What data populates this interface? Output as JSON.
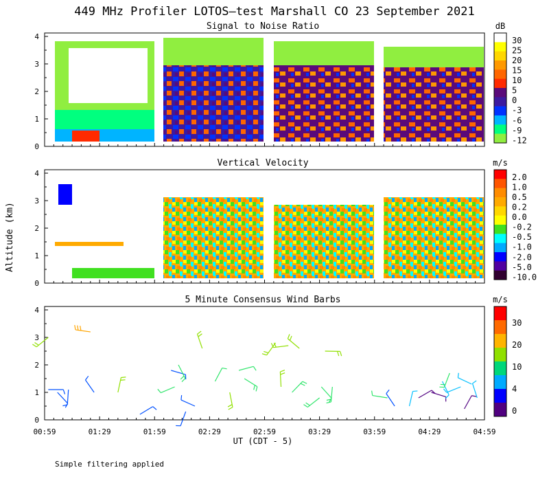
{
  "title": "449 MHz Profiler LOTOS—test Marshall CO 23 September 2021",
  "ylabel": "Altitude (km)",
  "xlabel": "UT  (CDT - 5)",
  "footnote": "Simple filtering applied",
  "x_ticks": [
    "00:59",
    "01:29",
    "01:59",
    "02:29",
    "02:59",
    "03:29",
    "03:59",
    "04:29",
    "04:59"
  ],
  "y_ticks": [
    "0",
    "1",
    "2",
    "3",
    "4"
  ],
  "chart_data": [
    {
      "type": "heatmap",
      "title": "Signal to Noise Ratio",
      "ylabel": "Altitude (km)",
      "xlabel": "UT  (CDT - 5)",
      "ylim": [
        0,
        4
      ],
      "xlim_minutes": [
        59,
        299
      ],
      "colorbar": {
        "unit": "dB",
        "labels": [
          "30",
          "25",
          "20",
          "15",
          "10",
          "5",
          "0",
          "-3",
          "-6",
          "-9",
          "-12"
        ],
        "colors": [
          "#ffffff",
          "#ffff00",
          "#ffd700",
          "#ff9900",
          "#ff6600",
          "#ff2a00",
          "#5a0a7a",
          "#3c1aa0",
          "#0032ff",
          "#00b4ff",
          "#00ff7f",
          "#90ee40"
        ]
      },
      "data_segments_minutes": [
        [
          59,
          118
        ],
        [
          122,
          178
        ],
        [
          181,
          238
        ],
        [
          241,
          297
        ]
      ]
    },
    {
      "type": "heatmap",
      "title": "Vertical Velocity",
      "ylabel": "Altitude (km)",
      "xlabel": "UT  (CDT - 5)",
      "ylim": [
        0,
        4
      ],
      "xlim_minutes": [
        59,
        299
      ],
      "colorbar": {
        "unit": "m/s",
        "labels": [
          "2.0",
          "1.0",
          "0.5",
          "0.2",
          "0.0",
          "-0.2",
          "-0.5",
          "-1.0",
          "-2.0",
          "-5.0",
          "-10.0"
        ],
        "colors": [
          "#ff0000",
          "#ff5500",
          "#ff8c00",
          "#ffaa00",
          "#ffd700",
          "#ffff00",
          "#40e020",
          "#00ffff",
          "#00aaff",
          "#0000ff",
          "#5000a0",
          "#300030"
        ]
      },
      "data_segments_minutes": [
        [
          59,
          118
        ],
        [
          122,
          178
        ],
        [
          181,
          238
        ],
        [
          241,
          297
        ]
      ]
    },
    {
      "type": "scatter",
      "title": "5 Minute Consensus Wind Barbs",
      "ylabel": "Altitude (km)",
      "xlabel": "UT  (CDT - 5)",
      "ylim": [
        0,
        4
      ],
      "xlim_minutes": [
        59,
        299
      ],
      "colorbar": {
        "unit": "m/s",
        "labels": [
          "30",
          "20",
          "10",
          "4",
          "0"
        ],
        "colors": [
          "#ff0000",
          "#ff6a00",
          "#ffb400",
          "#90e000",
          "#00d77a",
          "#00aaff",
          "#0000ff",
          "#500080"
        ]
      },
      "barbs": [
        {
          "t": 61,
          "z": 1.1,
          "speed": 3
        },
        {
          "t": 66,
          "z": 1.0,
          "speed": 3
        },
        {
          "t": 72,
          "z": 1.1,
          "speed": 2
        },
        {
          "t": 61,
          "z": 3.0,
          "speed": 11
        },
        {
          "t": 84,
          "z": 3.2,
          "speed": 18
        },
        {
          "t": 86,
          "z": 1.0,
          "speed": 2
        },
        {
          "t": 99,
          "z": 1.0,
          "speed": 10
        },
        {
          "t": 111,
          "z": 0.2,
          "speed": 2
        },
        {
          "t": 128,
          "z": 1.8,
          "speed": 2
        },
        {
          "t": 132,
          "z": 2.0,
          "speed": 8
        },
        {
          "t": 136,
          "z": 0.3,
          "speed": 2
        },
        {
          "t": 130,
          "z": 1.2,
          "speed": 6
        },
        {
          "t": 141,
          "z": 0.5,
          "speed": 3
        },
        {
          "t": 145,
          "z": 2.6,
          "speed": 11
        },
        {
          "t": 152,
          "z": 1.4,
          "speed": 6
        },
        {
          "t": 165,
          "z": 1.8,
          "speed": 7
        },
        {
          "t": 168,
          "z": 1.5,
          "speed": 8
        },
        {
          "t": 160,
          "z": 1.0,
          "speed": 10
        },
        {
          "t": 185,
          "z": 2.8,
          "speed": 12
        },
        {
          "t": 192,
          "z": 2.7,
          "speed": 12
        },
        {
          "t": 198,
          "z": 2.6,
          "speed": 11
        },
        {
          "t": 188,
          "z": 1.2,
          "speed": 10
        },
        {
          "t": 194,
          "z": 1.0,
          "speed": 9
        },
        {
          "t": 212,
          "z": 2.5,
          "speed": 11
        },
        {
          "t": 210,
          "z": 1.2,
          "speed": 7
        },
        {
          "t": 216,
          "z": 1.2,
          "speed": 8
        },
        {
          "t": 209,
          "z": 0.8,
          "speed": 9
        },
        {
          "t": 246,
          "z": 0.8,
          "speed": 6
        },
        {
          "t": 250,
          "z": 0.5,
          "speed": 2
        },
        {
          "t": 258,
          "z": 0.5,
          "speed": 4
        },
        {
          "t": 263,
          "z": 0.8,
          "speed": 1
        },
        {
          "t": 270,
          "z": 1.0,
          "speed": 0
        },
        {
          "t": 276,
          "z": 1.4,
          "speed": 5
        },
        {
          "t": 280,
          "z": 1.7,
          "speed": 8
        },
        {
          "t": 286,
          "z": 1.2,
          "speed": 5
        },
        {
          "t": 292,
          "z": 1.3,
          "speed": 5
        },
        {
          "t": 295,
          "z": 0.8,
          "speed": 4
        },
        {
          "t": 288,
          "z": 0.4,
          "speed": 1
        }
      ]
    }
  ]
}
